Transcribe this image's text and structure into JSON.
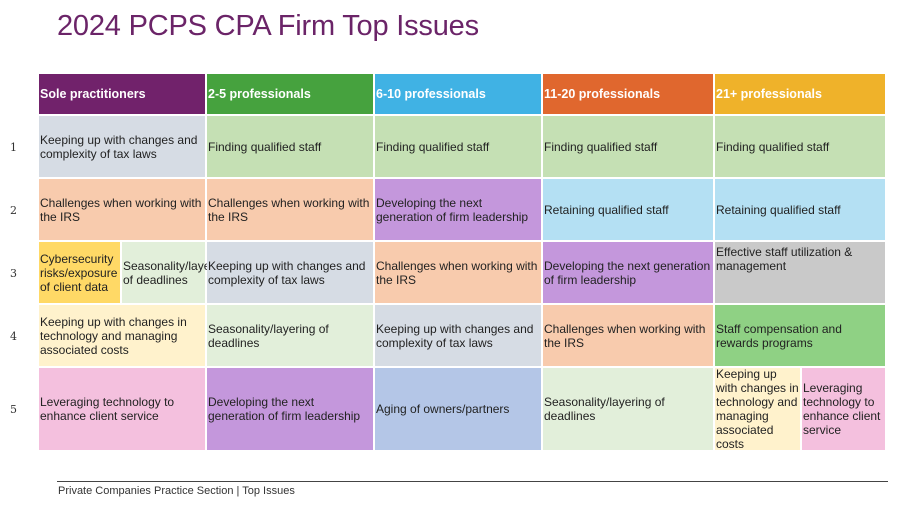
{
  "title": "2024 PCPS CPA Firm Top Issues",
  "row_numbers": [
    "1",
    "2",
    "3",
    "4",
    "5"
  ],
  "columns": [
    {
      "label": "Sole practitioners",
      "color": "#71226b"
    },
    {
      "label": "2-5 professionals",
      "color": "#46a23e"
    },
    {
      "label": "6-10 professionals",
      "color": "#40b2e4"
    },
    {
      "label": "11-20 professionals",
      "color": "#e0672e"
    },
    {
      "label": "21+ professionals",
      "color": "#efb22a"
    }
  ],
  "rows": [
    [
      {
        "items": [
          {
            "text": "Keeping up with changes and complexity of tax laws",
            "color": "#d6dce4"
          }
        ]
      },
      {
        "items": [
          {
            "text": "Finding qualified staff",
            "color": "#c5e0b4"
          }
        ]
      },
      {
        "items": [
          {
            "text": "Finding qualified staff",
            "color": "#c5e0b4"
          }
        ]
      },
      {
        "items": [
          {
            "text": "Finding qualified staff",
            "color": "#c5e0b4"
          }
        ]
      },
      {
        "items": [
          {
            "text": "Finding qualified staff",
            "color": "#c5e0b4"
          }
        ]
      }
    ],
    [
      {
        "items": [
          {
            "text": "Challenges when working with the IRS",
            "color": "#f8cbad"
          }
        ]
      },
      {
        "items": [
          {
            "text": "Challenges when working with the IRS",
            "color": "#f8cbad"
          }
        ]
      },
      {
        "items": [
          {
            "text": "Developing the next generation of firm leadership",
            "color": "#c497dc"
          }
        ]
      },
      {
        "items": [
          {
            "text": "Retaining qualified staff",
            "color": "#b4e0f3"
          }
        ]
      },
      {
        "items": [
          {
            "text": "Retaining qualified staff",
            "color": "#b4e0f3"
          }
        ]
      }
    ],
    [
      {
        "items": [
          {
            "text": "Cybersecurity risks/exposure of client data",
            "color": "#ffd966"
          },
          {
            "text": "Seasonality/layering of deadlines",
            "color": "#e2efda"
          }
        ]
      },
      {
        "items": [
          {
            "text": "Keeping up with changes and complexity of tax laws",
            "color": "#d6dce4"
          }
        ]
      },
      {
        "items": [
          {
            "text": "Challenges when working with the IRS",
            "color": "#f8cbad"
          }
        ]
      },
      {
        "items": [
          {
            "text": "Developing the next generation of firm leadership",
            "color": "#c497dc"
          }
        ]
      },
      {
        "items": [
          {
            "text": "Effective staff utilization & management",
            "color": "#c9c9c9"
          }
        ]
      }
    ],
    [
      {
        "items": [
          {
            "text": "Keeping up with changes in technology and managing associated costs",
            "color": "#fff2cc"
          }
        ]
      },
      {
        "items": [
          {
            "text": "Seasonality/layering of deadlines",
            "color": "#e2efda"
          }
        ]
      },
      {
        "items": [
          {
            "text": "Keeping up with changes and complexity of tax laws",
            "color": "#d6dce4"
          }
        ]
      },
      {
        "items": [
          {
            "text": "Challenges when working with the IRS",
            "color": "#f8cbad"
          }
        ]
      },
      {
        "items": [
          {
            "text": "Staff compensation and rewards programs",
            "color": "#8fd184"
          }
        ]
      }
    ],
    [
      {
        "items": [
          {
            "text": "Leveraging technology to enhance client service",
            "color": "#f4c0de"
          }
        ]
      },
      {
        "items": [
          {
            "text": "Developing the next generation of firm leadership",
            "color": "#c497dc"
          }
        ]
      },
      {
        "items": [
          {
            "text": "Aging of owners/partners",
            "color": "#b4c6e7"
          }
        ]
      },
      {
        "items": [
          {
            "text": "Seasonality/layering of deadlines",
            "color": "#e2efda"
          }
        ]
      },
      {
        "items": [
          {
            "text": "Keeping up with changes in technology and managing associated costs",
            "color": "#fff2cc"
          },
          {
            "text": "Leveraging technology to enhance client service",
            "color": "#f4c0de"
          }
        ]
      }
    ]
  ],
  "footer": "Private Companies Practice Section | Top Issues"
}
